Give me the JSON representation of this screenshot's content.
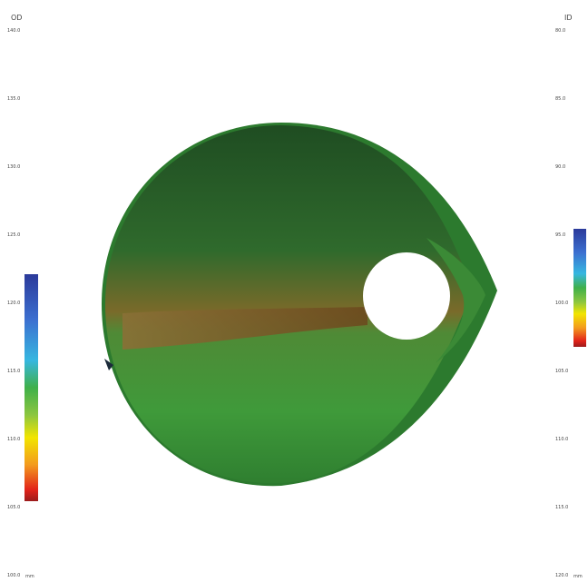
{
  "left_scale": {
    "title": "OD",
    "labels": [
      "140.0",
      "135.0",
      "130.0",
      "125.0",
      "120.0",
      "115.0",
      "110.0",
      "105.0",
      "100.0"
    ],
    "unit": "mm"
  },
  "right_scale": {
    "title": "ID",
    "labels": [
      "80.0",
      "85.0",
      "90.0",
      "95.0",
      "100.0",
      "105.0",
      "110.0",
      "115.0",
      "120.0"
    ],
    "unit": "mm"
  }
}
